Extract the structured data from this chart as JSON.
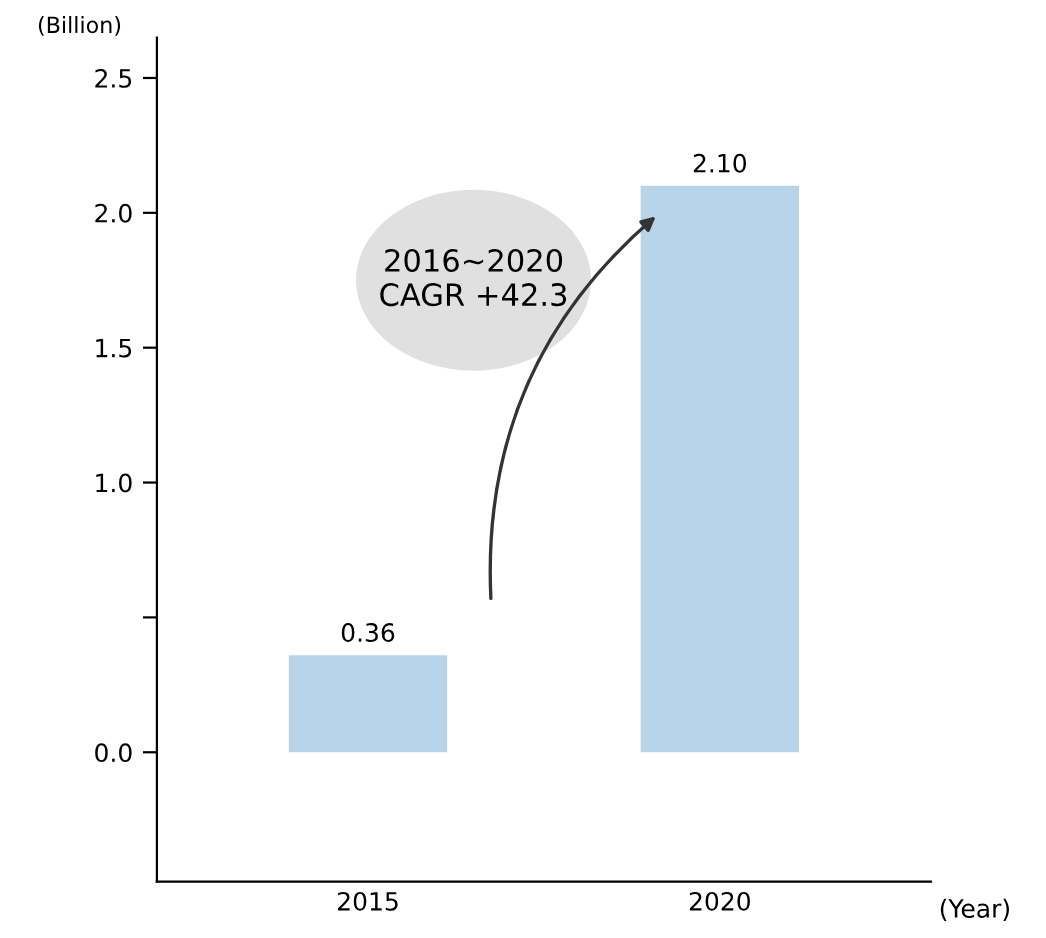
{
  "chart_data": {
    "type": "bar",
    "ylabel": "(Billion)",
    "xlabel": "(Year)",
    "categories": [
      "2015",
      "2020"
    ],
    "values": [
      0.36,
      2.1
    ],
    "color": "#b8d4ea",
    "value_labels": [
      "0.36",
      "2.10"
    ],
    "ylim": [
      -0.48,
      2.65
    ],
    "yticks": [
      {
        "value": 0.0,
        "label": "0.0"
      },
      {
        "value": 0.5,
        "label": null
      },
      {
        "value": 1.0,
        "label": "1.0"
      },
      {
        "value": 1.5,
        "label": "1.5"
      },
      {
        "value": 2.0,
        "label": "2.0"
      },
      {
        "value": 2.5,
        "label": "2.5"
      }
    ],
    "annotations": [
      "2016~2020\nCAGR +42.3"
    ],
    "grid": false
  }
}
